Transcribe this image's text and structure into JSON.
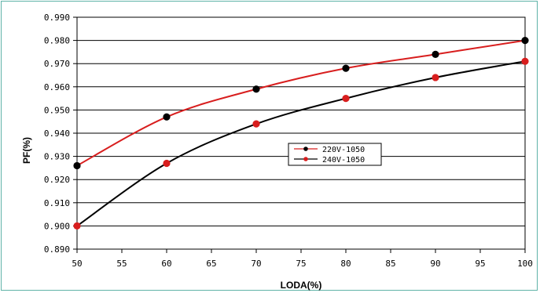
{
  "chart_data": {
    "type": "line",
    "xlabel": "LODA(%)",
    "ylabel": "PF(%)",
    "xlim": [
      50,
      100
    ],
    "ylim": [
      0.89,
      0.99
    ],
    "x_ticks": [
      "50",
      "55",
      "60",
      "65",
      "70",
      "75",
      "80",
      "85",
      "90",
      "95",
      "100"
    ],
    "y_ticks": [
      "0.990",
      "0.980",
      "0.970",
      "0.960",
      "0.950",
      "0.940",
      "0.930",
      "0.920",
      "0.910",
      "0.900",
      "0.890"
    ],
    "grid": "horizontal",
    "legend_position": "center-right",
    "series": [
      {
        "name": "220V-1050",
        "line_color": "#d81e1e",
        "marker_color": "#000000",
        "x": [
          50,
          60,
          70,
          80,
          90,
          100
        ],
        "y": [
          0.926,
          0.947,
          0.959,
          0.968,
          0.974,
          0.98
        ]
      },
      {
        "name": "240V-1050",
        "line_color": "#000000",
        "marker_color": "#d81e1e",
        "x": [
          50,
          60,
          70,
          80,
          90,
          100
        ],
        "y": [
          0.9,
          0.927,
          0.944,
          0.955,
          0.964,
          0.971
        ]
      }
    ]
  }
}
